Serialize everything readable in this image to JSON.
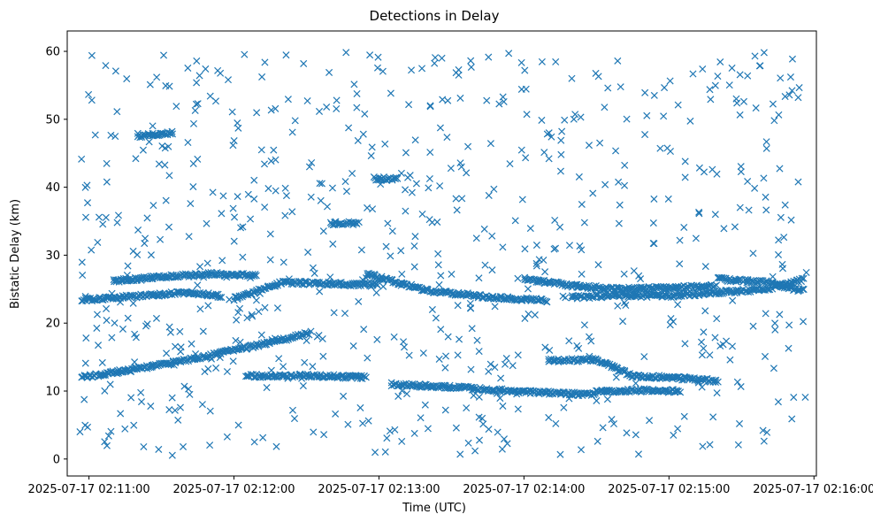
{
  "chart_data": {
    "type": "scatter",
    "title": "Detections in Delay",
    "xlabel": "Time (UTC)",
    "ylabel": "Bistatic Delay (km)",
    "x_unit": "time (HH:MM:SS UTC on 2025-07-17)",
    "xlim": [
      "02:10:51",
      "02:16:01"
    ],
    "ylim": [
      -2.5,
      63
    ],
    "x_ticks": [
      "2025-07-17 02:11:00",
      "2025-07-17 02:12:00",
      "2025-07-17 02:13:00",
      "2025-07-17 02:14:00",
      "2025-07-17 02:15:00",
      "2025-07-17 02:16:00"
    ],
    "y_ticks": [
      0,
      10,
      20,
      30,
      40,
      50,
      60
    ],
    "grid": false,
    "legend": "none",
    "marker": "x",
    "color": "#1f77b4",
    "tracks": [
      {
        "description": "lower ramp",
        "points": [
          [
            "02:10:57",
            12.0
          ],
          [
            "02:11:20",
            13.3
          ],
          [
            "02:11:40",
            14.5
          ],
          [
            "02:12:00",
            16.0
          ],
          [
            "02:12:20",
            17.5
          ],
          [
            "02:12:32",
            18.6
          ]
        ]
      },
      {
        "description": "lower flat",
        "points": [
          [
            "02:12:05",
            12.2
          ],
          [
            "02:12:30",
            12.3
          ],
          [
            "02:12:55",
            12.0
          ]
        ]
      },
      {
        "description": "lower middle",
        "points": [
          [
            "02:13:05",
            11.0
          ],
          [
            "02:13:30",
            10.6
          ],
          [
            "02:13:55",
            10.0
          ],
          [
            "02:14:20",
            9.6
          ],
          [
            "02:14:30",
            9.5
          ]
        ]
      },
      {
        "description": "lower right upper",
        "points": [
          [
            "02:14:10",
            14.5
          ],
          [
            "02:14:30",
            14.6
          ],
          [
            "02:14:45",
            12.2
          ],
          [
            "02:15:00",
            12.0
          ],
          [
            "02:15:20",
            11.5
          ]
        ]
      },
      {
        "description": "lower right lower",
        "points": [
          [
            "02:14:30",
            10.0
          ],
          [
            "02:14:50",
            10.1
          ],
          [
            "02:15:05",
            10.0
          ]
        ]
      },
      {
        "description": "upper left",
        "points": [
          [
            "02:10:57",
            23.4
          ],
          [
            "02:11:20",
            24.0
          ],
          [
            "02:11:40",
            24.5
          ],
          [
            "02:11:55",
            24.0
          ]
        ]
      },
      {
        "description": "upper left top",
        "points": [
          [
            "02:11:10",
            26.2
          ],
          [
            "02:11:30",
            26.8
          ],
          [
            "02:11:50",
            27.2
          ],
          [
            "02:12:10",
            27.0
          ]
        ]
      },
      {
        "description": "upper 2",
        "points": [
          [
            "02:12:00",
            23.6
          ],
          [
            "02:12:20",
            26.0
          ],
          [
            "02:12:40",
            25.8
          ],
          [
            "02:13:00",
            25.6
          ]
        ]
      },
      {
        "description": "upper 3",
        "points": [
          [
            "02:12:55",
            27.2
          ],
          [
            "02:13:20",
            24.8
          ],
          [
            "02:13:40",
            24.0
          ],
          [
            "02:14:00",
            23.5
          ],
          [
            "02:14:10",
            23.3
          ]
        ]
      },
      {
        "description": "upper 4",
        "points": [
          [
            "02:14:00",
            26.5
          ],
          [
            "02:14:20",
            25.5
          ],
          [
            "02:14:40",
            25.0
          ],
          [
            "02:15:00",
            25.2
          ],
          [
            "02:15:20",
            25.5
          ]
        ]
      },
      {
        "description": "upper 5",
        "points": [
          [
            "02:14:20",
            23.8
          ],
          [
            "02:14:40",
            24.1
          ],
          [
            "02:15:00",
            24.0
          ],
          [
            "02:15:20",
            24.5
          ],
          [
            "02:15:40",
            25.0
          ],
          [
            "02:15:56",
            26.5
          ]
        ]
      },
      {
        "description": "upper 6",
        "points": [
          [
            "02:15:20",
            26.5
          ],
          [
            "02:15:40",
            26.0
          ],
          [
            "02:15:56",
            24.7
          ]
        ]
      },
      {
        "description": "cluster 48",
        "points": [
          [
            "02:11:20",
            47.5
          ],
          [
            "02:11:35",
            48.0
          ]
        ]
      },
      {
        "description": "cluster 41",
        "points": [
          [
            "02:12:58",
            41.3
          ],
          [
            "02:13:08",
            41.2
          ]
        ]
      },
      {
        "description": "cluster 35",
        "points": [
          [
            "02:12:40",
            34.7
          ],
          [
            "02:12:52",
            34.7
          ]
        ]
      }
    ]
  }
}
